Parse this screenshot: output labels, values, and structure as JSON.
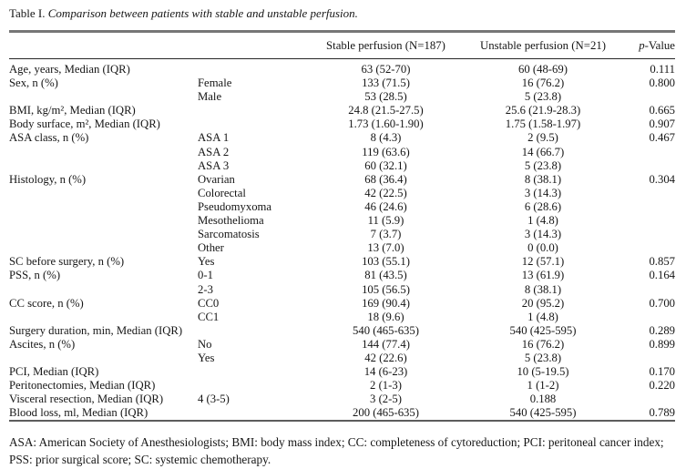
{
  "title": {
    "prefix": "Table I.",
    "text": "Comparison between patients with stable and unstable perfusion."
  },
  "table": {
    "headers": {
      "stable": "Stable perfusion (N=187)",
      "unstable": "Unstable perfusion (N=21)",
      "p_italic": "p",
      "p_rest": "-Value"
    },
    "rows": [
      {
        "label": "Age, years, Median (IQR)",
        "sub": "",
        "stable": "63 (52-70)",
        "unstable": "60 (48-69)",
        "p": "0.111"
      },
      {
        "label": "Sex, n (%)",
        "sub": "Female",
        "stable": "133 (71.5)",
        "unstable": "16 (76.2)",
        "p": "0.800"
      },
      {
        "label": "",
        "sub": "Male",
        "stable": "53 (28.5)",
        "unstable": "5 (23.8)",
        "p": ""
      },
      {
        "label": "BMI, kg/m², Median (IQR)",
        "sub": "",
        "stable": "24.8 (21.5-27.5)",
        "unstable": "25.6 (21.9-28.3)",
        "p": "0.665"
      },
      {
        "label": "Body surface, m², Median (IQR)",
        "sub": "",
        "stable": "1.73 (1.60-1.90)",
        "unstable": "1.75 (1.58-1.97)",
        "p": "0.907"
      },
      {
        "label": "ASA class, n (%)",
        "sub": "ASA 1",
        "stable": "8 (4.3)",
        "unstable": "2 (9.5)",
        "p": "0.467"
      },
      {
        "label": "",
        "sub": "ASA 2",
        "stable": "119 (63.6)",
        "unstable": "14 (66.7)",
        "p": ""
      },
      {
        "label": "",
        "sub": "ASA 3",
        "stable": "60 (32.1)",
        "unstable": "5 (23.8)",
        "p": ""
      },
      {
        "label": "Histology, n (%)",
        "sub": "Ovarian",
        "stable": "68 (36.4)",
        "unstable": "8 (38.1)",
        "p": "0.304"
      },
      {
        "label": "",
        "sub": "Colorectal",
        "stable": "42 (22.5)",
        "unstable": "3 (14.3)",
        "p": ""
      },
      {
        "label": "",
        "sub": "Pseudomyxoma",
        "stable": "46 (24.6)",
        "unstable": "6 (28.6)",
        "p": ""
      },
      {
        "label": "",
        "sub": "Mesothelioma",
        "stable": "11 (5.9)",
        "unstable": "1 (4.8)",
        "p": ""
      },
      {
        "label": "",
        "sub": "Sarcomatosis",
        "stable": "7 (3.7)",
        "unstable": "3 (14.3)",
        "p": ""
      },
      {
        "label": "",
        "sub": "Other",
        "stable": "13 (7.0)",
        "unstable": "0 (0.0)",
        "p": ""
      },
      {
        "label": "SC before surgery, n (%)",
        "sub": "Yes",
        "stable": "103 (55.1)",
        "unstable": "12 (57.1)",
        "p": "0.857"
      },
      {
        "label": "PSS, n (%)",
        "sub": "0-1",
        "stable": "81 (43.5)",
        "unstable": "13 (61.9)",
        "p": "0.164"
      },
      {
        "label": "",
        "sub": "2-3",
        "stable": "105 (56.5)",
        "unstable": "8 (38.1)",
        "p": ""
      },
      {
        "label": "CC score, n (%)",
        "sub": "CC0",
        "stable": "169 (90.4)",
        "unstable": "20 (95.2)",
        "p": "0.700"
      },
      {
        "label": "",
        "sub": "CC1",
        "stable": "18 (9.6)",
        "unstable": "1 (4.8)",
        "p": ""
      },
      {
        "label": "Surgery duration, min, Median (IQR)",
        "sub": "",
        "stable": "540 (465-635)",
        "unstable": "540 (425-595)",
        "p": "0.289"
      },
      {
        "label": "Ascites, n (%)",
        "sub": "No",
        "stable": "144 (77.4)",
        "unstable": "16 (76.2)",
        "p": "0.899"
      },
      {
        "label": "",
        "sub": "Yes",
        "stable": "42 (22.6)",
        "unstable": "5 (23.8)",
        "p": ""
      },
      {
        "label": "PCI, Median (IQR)",
        "sub": "",
        "stable": "14 (6-23)",
        "unstable": "10 (5-19.5)",
        "p": "0.170"
      },
      {
        "label": "Peritonectomies, Median (IQR)",
        "sub": "",
        "stable": "2 (1-3)",
        "unstable": "1 (1-2)",
        "p": "0.220"
      },
      {
        "label": "Visceral resection, Median (IQR)",
        "sub": "4 (3-5)",
        "stable": "3 (2-5)",
        "unstable": "0.188",
        "p": ""
      },
      {
        "label": "Blood loss, ml, Median (IQR)",
        "sub": "",
        "stable": "200 (465-635)",
        "unstable": "540 (425-595)",
        "p": "0.789"
      }
    ]
  },
  "footnote": "ASA: American Society of Anesthesiologists; BMI: body mass index; CC: completeness of cytoreduction; PCI: peritoneal cancer index; PSS: prior surgical score; SC: systemic chemotherapy."
}
